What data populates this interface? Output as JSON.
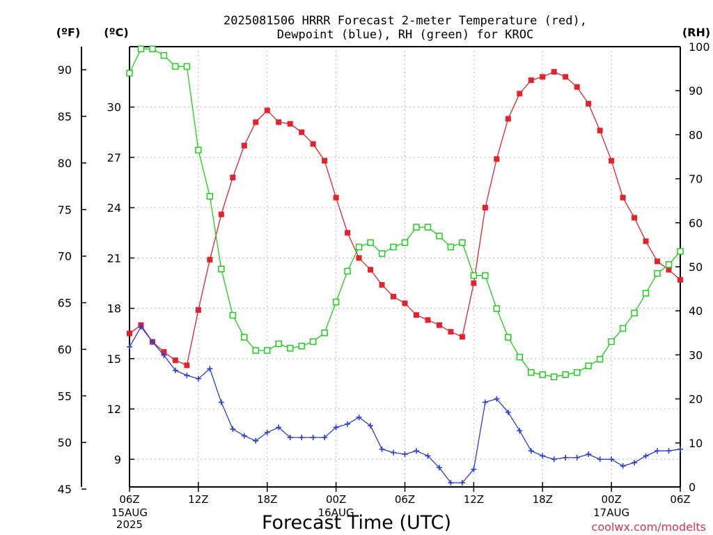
{
  "chart_data": {
    "type": "line",
    "title_line1": "2025081506 HRRR Forecast 2-meter Temperature (red),",
    "title_line2": "Dewpoint (blue), RH (green) for KROC",
    "xlabel": "Forecast Time (UTC)",
    "credit": "coolwx.com/modelts",
    "units": {
      "f": "(ºF)",
      "c": "(ºC)",
      "rh": "(RH)"
    },
    "f_ticks": [
      45,
      50,
      55,
      60,
      65,
      70,
      75,
      80,
      85,
      90
    ],
    "c_ticks": [
      9,
      12,
      15,
      18,
      21,
      24,
      27,
      30
    ],
    "rh_ticks": [
      0,
      10,
      20,
      30,
      40,
      50,
      60,
      70,
      80,
      90,
      100
    ],
    "c_range": [
      7.35,
      33.6
    ],
    "rh_range": [
      0,
      100
    ],
    "x_range": [
      0,
      48
    ],
    "x_ticks": [
      {
        "h": 0,
        "label": "06Z",
        "sub": [
          "15AUG",
          "2025"
        ]
      },
      {
        "h": 6,
        "label": "12Z",
        "sub": []
      },
      {
        "h": 12,
        "label": "18Z",
        "sub": []
      },
      {
        "h": 18,
        "label": "00Z",
        "sub": [
          "16AUG"
        ]
      },
      {
        "h": 24,
        "label": "06Z",
        "sub": []
      },
      {
        "h": 30,
        "label": "12Z",
        "sub": []
      },
      {
        "h": 36,
        "label": "18Z",
        "sub": []
      },
      {
        "h": 42,
        "label": "00Z",
        "sub": [
          "17AUG"
        ]
      },
      {
        "h": 48,
        "label": "06Z",
        "sub": []
      }
    ],
    "series": [
      {
        "key": "temperature",
        "color": "#e8202a",
        "marker": "filled-square",
        "hours": [
          0,
          1,
          2,
          3,
          4,
          5,
          6,
          7,
          8,
          9,
          10,
          11,
          12,
          13,
          14,
          15,
          16,
          17,
          18,
          19,
          20,
          21,
          22,
          23,
          24,
          25,
          26,
          27,
          28,
          29,
          30,
          31,
          32,
          33,
          34,
          35,
          36,
          37,
          38,
          39,
          40,
          41,
          42,
          43,
          44,
          45,
          46,
          47,
          48
        ],
        "values": [
          16.5,
          17.0,
          16.0,
          15.4,
          14.9,
          14.6,
          17.9,
          20.9,
          23.6,
          25.8,
          27.7,
          29.1,
          29.8,
          29.1,
          29.0,
          28.5,
          27.8,
          26.8,
          24.6,
          22.5,
          21.0,
          20.3,
          19.4,
          18.7,
          18.3,
          17.6,
          17.3,
          17.0,
          16.6,
          16.3,
          19.5,
          24.0,
          26.9,
          29.3,
          30.8,
          31.6,
          31.8,
          32.1,
          31.8,
          31.2,
          30.2,
          28.6,
          26.8,
          24.6,
          23.4,
          22.0,
          20.8,
          20.3,
          19.7
        ]
      },
      {
        "key": "dewpoint",
        "color": "#2a3ce0",
        "marker": "plus",
        "hours": [
          0,
          1,
          2,
          3,
          4,
          5,
          6,
          7,
          8,
          9,
          10,
          11,
          12,
          13,
          14,
          15,
          16,
          17,
          18,
          19,
          20,
          21,
          22,
          23,
          24,
          25,
          26,
          27,
          28,
          29,
          30,
          31,
          32,
          33,
          34,
          35,
          36,
          37,
          38,
          39,
          40,
          41,
          42,
          43,
          44,
          45,
          46,
          47,
          48
        ],
        "values": [
          15.7,
          16.9,
          16.0,
          15.2,
          14.3,
          14.0,
          13.8,
          14.4,
          12.4,
          10.8,
          10.4,
          10.1,
          10.6,
          10.9,
          10.3,
          10.3,
          10.3,
          10.3,
          10.9,
          11.1,
          11.5,
          11.0,
          9.6,
          9.4,
          9.3,
          9.5,
          9.2,
          8.5,
          7.6,
          7.6,
          8.4,
          12.4,
          12.6,
          11.8,
          10.7,
          9.5,
          9.2,
          9.0,
          9.1,
          9.1,
          9.3,
          9.0,
          9.0,
          8.6,
          8.8,
          9.2,
          9.5,
          9.5,
          9.6
        ]
      },
      {
        "key": "rh",
        "color": "#18d218",
        "marker": "open-square",
        "hours": [
          0,
          1,
          2,
          3,
          4,
          5,
          6,
          7,
          8,
          9,
          10,
          11,
          12,
          13,
          14,
          15,
          16,
          17,
          18,
          19,
          20,
          21,
          22,
          23,
          24,
          25,
          26,
          27,
          28,
          29,
          30,
          31,
          32,
          33,
          34,
          35,
          36,
          37,
          38,
          39,
          40,
          41,
          42,
          43,
          44,
          45,
          46,
          47,
          48
        ],
        "values": [
          94,
          99.5,
          99.5,
          98,
          95.5,
          95.5,
          76.5,
          66,
          49.5,
          39,
          34,
          31,
          31,
          32.5,
          31.5,
          32,
          33,
          35,
          42,
          49,
          54.5,
          55.5,
          53,
          54.5,
          55.5,
          59,
          59,
          57,
          54.5,
          55.5,
          48,
          48,
          40.5,
          34,
          29.5,
          26,
          25.5,
          25,
          25.5,
          26,
          27.5,
          29,
          33,
          36,
          39.5,
          44,
          48.5,
          50.5,
          53.5
        ]
      }
    ]
  }
}
